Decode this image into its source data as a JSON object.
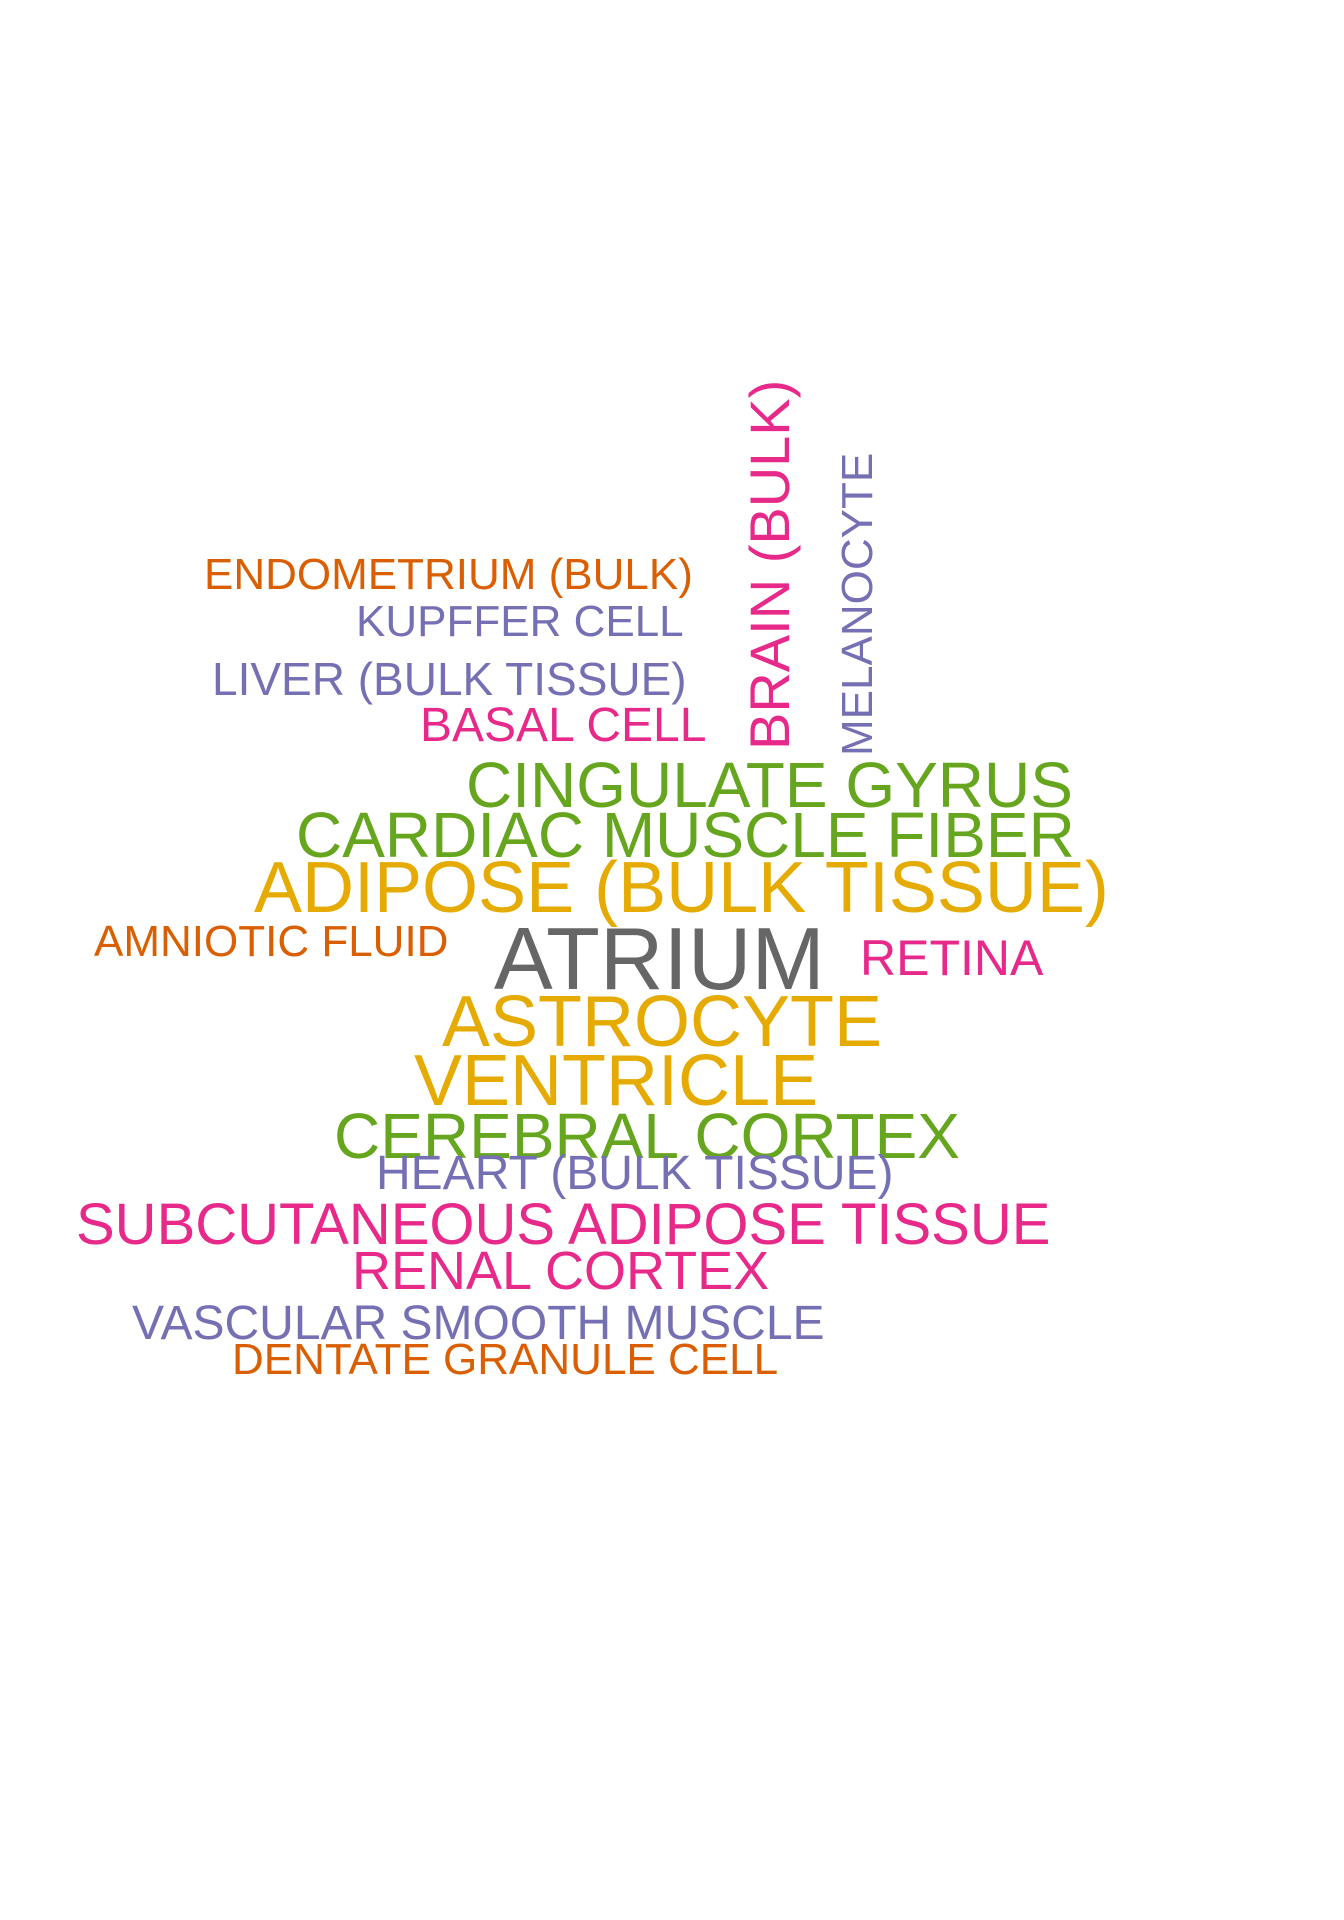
{
  "colors": {
    "orange": "#D95F02",
    "purple": "#7570B3",
    "pink": "#E7298A",
    "green": "#66A61E",
    "yellow": "#E6AB02",
    "gray": "#666666"
  },
  "words": {
    "endometrium": "ENDOMETRIUM (BULK)",
    "kupffer": "KUPFFER CELL",
    "liver": "LIVER (BULK TISSUE)",
    "basal": "BASAL CELL",
    "brain": "BRAIN (BULK)",
    "melanocyte": "MELANOCYTE",
    "cingulate": "CINGULATE GYRUS",
    "cardiac": "CARDIAC MUSCLE FIBER",
    "adipose": "ADIPOSE (BULK TISSUE)",
    "amniotic": "AMNIOTIC FLUID",
    "atrium": "ATRIUM",
    "retina": "RETINA",
    "astrocyte": "ASTROCYTE",
    "ventricle": "VENTRICLE",
    "cerebral": "CEREBRAL CORTEX",
    "heart": "HEART (BULK TISSUE)",
    "subcutaneous": "SUBCUTANEOUS ADIPOSE TISSUE",
    "renal": "RENAL CORTEX",
    "vascular": "VASCULAR SMOOTH MUSCLE",
    "dentate": "DENTATE GRANULE CELL"
  }
}
